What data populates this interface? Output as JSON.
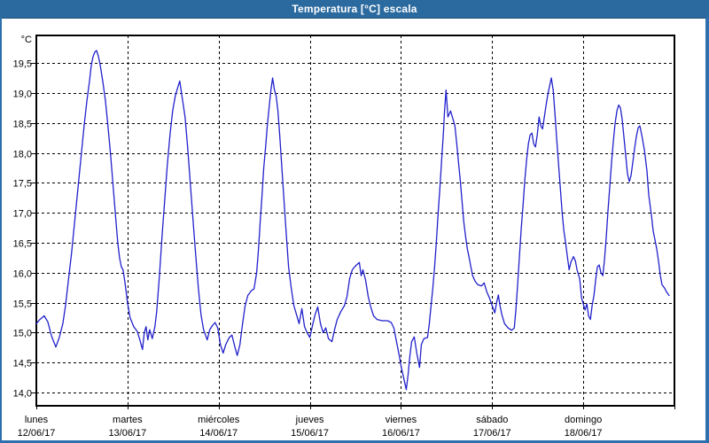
{
  "window": {
    "title": "Temperatura [°C] escala"
  },
  "colors": {
    "titlebar": "#2B6A9F",
    "window_border": "#2E6FAD",
    "title_text": "#FFFFFF",
    "plot_border": "#000000",
    "gridline": "#000000",
    "series_line": "#2121CC",
    "background": "#FFFFFF"
  },
  "chart_data": {
    "type": "line",
    "title": "Temperatura [°C] escala",
    "y_unit_label": "°C",
    "xlabel": "",
    "ylabel": "°C",
    "ylim": [
      13.78,
      19.96
    ],
    "grid": "dashed",
    "legend": "none",
    "y_ticks": [
      {
        "value": 19.5,
        "label": "19,5"
      },
      {
        "value": 19.0,
        "label": "19,0"
      },
      {
        "value": 18.5,
        "label": "18,5"
      },
      {
        "value": 18.0,
        "label": "18,0"
      },
      {
        "value": 17.5,
        "label": "17,5"
      },
      {
        "value": 17.0,
        "label": "17,0"
      },
      {
        "value": 16.5,
        "label": "16,5"
      },
      {
        "value": 16.0,
        "label": "16,0"
      },
      {
        "value": 15.5,
        "label": "15,5"
      },
      {
        "value": 15.0,
        "label": "15,0"
      },
      {
        "value": 14.5,
        "label": "14,5"
      },
      {
        "value": 14.0,
        "label": "14,0"
      }
    ],
    "x_categories": [
      {
        "day": "lunes",
        "date": "12/06/17"
      },
      {
        "day": "martes",
        "date": "13/06/17"
      },
      {
        "day": "miércoles",
        "date": "14/06/17"
      },
      {
        "day": "jueves",
        "date": "15/06/17"
      },
      {
        "day": "viernes",
        "date": "16/06/17"
      },
      {
        "day": "sábado",
        "date": "17/06/17"
      },
      {
        "day": "domingo",
        "date": "18/06/17"
      }
    ],
    "series": [
      {
        "name": "Temperatura",
        "color": "#2121CC",
        "points": [
          [
            0.0,
            15.15
          ],
          [
            0.039,
            15.22
          ],
          [
            0.087,
            15.28
          ],
          [
            0.126,
            15.18
          ],
          [
            0.165,
            14.95
          ],
          [
            0.214,
            14.76
          ],
          [
            0.252,
            14.92
          ],
          [
            0.291,
            15.15
          ],
          [
            0.32,
            15.45
          ],
          [
            0.35,
            15.85
          ],
          [
            0.388,
            16.35
          ],
          [
            0.427,
            16.95
          ],
          [
            0.466,
            17.55
          ],
          [
            0.495,
            18.0
          ],
          [
            0.524,
            18.45
          ],
          [
            0.553,
            18.85
          ],
          [
            0.583,
            19.2
          ],
          [
            0.602,
            19.45
          ],
          [
            0.621,
            19.6
          ],
          [
            0.641,
            19.68
          ],
          [
            0.66,
            19.71
          ],
          [
            0.68,
            19.62
          ],
          [
            0.699,
            19.48
          ],
          [
            0.728,
            19.2
          ],
          [
            0.757,
            18.88
          ],
          [
            0.786,
            18.45
          ],
          [
            0.816,
            17.95
          ],
          [
            0.845,
            17.4
          ],
          [
            0.874,
            16.85
          ],
          [
            0.893,
            16.5
          ],
          [
            0.913,
            16.25
          ],
          [
            0.932,
            16.1
          ],
          [
            0.951,
            16.05
          ],
          [
            0.971,
            15.85
          ],
          [
            1.0,
            15.5
          ],
          [
            1.029,
            15.25
          ],
          [
            1.068,
            15.1
          ],
          [
            1.107,
            15.02
          ],
          [
            1.136,
            14.88
          ],
          [
            1.165,
            14.72
          ],
          [
            1.184,
            15.0
          ],
          [
            1.204,
            15.1
          ],
          [
            1.223,
            14.88
          ],
          [
            1.243,
            15.05
          ],
          [
            1.272,
            14.9
          ],
          [
            1.301,
            15.1
          ],
          [
            1.32,
            15.35
          ],
          [
            1.35,
            15.95
          ],
          [
            1.379,
            16.6
          ],
          [
            1.408,
            17.2
          ],
          [
            1.437,
            17.8
          ],
          [
            1.466,
            18.3
          ],
          [
            1.495,
            18.7
          ],
          [
            1.524,
            18.95
          ],
          [
            1.553,
            19.1
          ],
          [
            1.573,
            19.2
          ],
          [
            1.602,
            18.9
          ],
          [
            1.631,
            18.6
          ],
          [
            1.66,
            18.1
          ],
          [
            1.689,
            17.5
          ],
          [
            1.718,
            16.9
          ],
          [
            1.748,
            16.3
          ],
          [
            1.777,
            15.75
          ],
          [
            1.806,
            15.3
          ],
          [
            1.835,
            15.05
          ],
          [
            1.874,
            14.88
          ],
          [
            1.903,
            15.05
          ],
          [
            1.932,
            15.12
          ],
          [
            1.961,
            15.17
          ],
          [
            1.99,
            15.08
          ],
          [
            2.019,
            14.8
          ],
          [
            2.049,
            14.66
          ],
          [
            2.078,
            14.8
          ],
          [
            2.117,
            14.92
          ],
          [
            2.146,
            14.96
          ],
          [
            2.175,
            14.78
          ],
          [
            2.204,
            14.62
          ],
          [
            2.233,
            14.8
          ],
          [
            2.262,
            15.15
          ],
          [
            2.291,
            15.45
          ],
          [
            2.32,
            15.62
          ],
          [
            2.359,
            15.7
          ],
          [
            2.388,
            15.73
          ],
          [
            2.417,
            16.0
          ],
          [
            2.437,
            16.4
          ],
          [
            2.456,
            16.85
          ],
          [
            2.476,
            17.3
          ],
          [
            2.495,
            17.75
          ],
          [
            2.515,
            18.1
          ],
          [
            2.534,
            18.45
          ],
          [
            2.553,
            18.75
          ],
          [
            2.573,
            19.05
          ],
          [
            2.592,
            19.25
          ],
          [
            2.612,
            19.05
          ],
          [
            2.631,
            18.95
          ],
          [
            2.65,
            18.7
          ],
          [
            2.67,
            18.3
          ],
          [
            2.689,
            17.85
          ],
          [
            2.709,
            17.4
          ],
          [
            2.728,
            16.95
          ],
          [
            2.748,
            16.5
          ],
          [
            2.767,
            16.1
          ],
          [
            2.796,
            15.75
          ],
          [
            2.825,
            15.45
          ],
          [
            2.854,
            15.3
          ],
          [
            2.883,
            15.15
          ],
          [
            2.913,
            15.4
          ],
          [
            2.942,
            15.1
          ],
          [
            2.971,
            15.0
          ],
          [
            3.0,
            14.92
          ],
          [
            3.029,
            15.12
          ],
          [
            3.058,
            15.3
          ],
          [
            3.087,
            15.43
          ],
          [
            3.117,
            15.15
          ],
          [
            3.146,
            15.0
          ],
          [
            3.175,
            15.08
          ],
          [
            3.204,
            14.9
          ],
          [
            3.243,
            14.85
          ],
          [
            3.272,
            15.05
          ],
          [
            3.301,
            15.22
          ],
          [
            3.34,
            15.35
          ],
          [
            3.379,
            15.45
          ],
          [
            3.408,
            15.6
          ],
          [
            3.437,
            15.9
          ],
          [
            3.466,
            16.05
          ],
          [
            3.505,
            16.12
          ],
          [
            3.544,
            16.17
          ],
          [
            3.563,
            15.95
          ],
          [
            3.583,
            16.05
          ],
          [
            3.612,
            15.88
          ],
          [
            3.641,
            15.6
          ],
          [
            3.67,
            15.42
          ],
          [
            3.699,
            15.28
          ],
          [
            3.738,
            15.22
          ],
          [
            3.796,
            15.2
          ],
          [
            3.854,
            15.2
          ],
          [
            3.893,
            15.17
          ],
          [
            3.922,
            15.08
          ],
          [
            3.951,
            14.85
          ],
          [
            3.981,
            14.62
          ],
          [
            4.0,
            14.45
          ],
          [
            4.029,
            14.25
          ],
          [
            4.058,
            14.05
          ],
          [
            4.078,
            14.3
          ],
          [
            4.097,
            14.6
          ],
          [
            4.117,
            14.85
          ],
          [
            4.146,
            14.93
          ],
          [
            4.175,
            14.65
          ],
          [
            4.204,
            14.42
          ],
          [
            4.223,
            14.8
          ],
          [
            4.252,
            14.9
          ],
          [
            4.291,
            14.92
          ],
          [
            4.311,
            15.15
          ],
          [
            4.33,
            15.45
          ],
          [
            4.35,
            15.75
          ],
          [
            4.369,
            16.1
          ],
          [
            4.388,
            16.5
          ],
          [
            4.408,
            17.0
          ],
          [
            4.427,
            17.4
          ],
          [
            4.447,
            17.9
          ],
          [
            4.466,
            18.35
          ],
          [
            4.476,
            18.65
          ],
          [
            4.495,
            19.05
          ],
          [
            4.515,
            18.6
          ],
          [
            4.544,
            18.7
          ],
          [
            4.573,
            18.55
          ],
          [
            4.592,
            18.45
          ],
          [
            4.612,
            18.15
          ],
          [
            4.631,
            17.85
          ],
          [
            4.65,
            17.55
          ],
          [
            4.67,
            17.2
          ],
          [
            4.689,
            16.85
          ],
          [
            4.709,
            16.6
          ],
          [
            4.728,
            16.4
          ],
          [
            4.748,
            16.25
          ],
          [
            4.767,
            16.1
          ],
          [
            4.786,
            15.95
          ],
          [
            4.816,
            15.85
          ],
          [
            4.845,
            15.8
          ],
          [
            4.883,
            15.78
          ],
          [
            4.913,
            15.83
          ],
          [
            4.942,
            15.68
          ],
          [
            4.971,
            15.58
          ],
          [
            5.0,
            15.45
          ],
          [
            5.029,
            15.33
          ],
          [
            5.049,
            15.5
          ],
          [
            5.068,
            15.63
          ],
          [
            5.087,
            15.45
          ],
          [
            5.107,
            15.3
          ],
          [
            5.136,
            15.15
          ],
          [
            5.175,
            15.08
          ],
          [
            5.214,
            15.04
          ],
          [
            5.243,
            15.08
          ],
          [
            5.262,
            15.4
          ],
          [
            5.282,
            15.85
          ],
          [
            5.301,
            16.3
          ],
          [
            5.32,
            16.75
          ],
          [
            5.34,
            17.15
          ],
          [
            5.359,
            17.55
          ],
          [
            5.379,
            17.9
          ],
          [
            5.398,
            18.15
          ],
          [
            5.417,
            18.3
          ],
          [
            5.437,
            18.33
          ],
          [
            5.456,
            18.15
          ],
          [
            5.476,
            18.1
          ],
          [
            5.495,
            18.3
          ],
          [
            5.515,
            18.6
          ],
          [
            5.534,
            18.45
          ],
          [
            5.553,
            18.4
          ],
          [
            5.573,
            18.6
          ],
          [
            5.592,
            18.8
          ],
          [
            5.612,
            18.98
          ],
          [
            5.631,
            19.12
          ],
          [
            5.65,
            19.25
          ],
          [
            5.67,
            19.05
          ],
          [
            5.689,
            18.65
          ],
          [
            5.709,
            18.22
          ],
          [
            5.728,
            17.82
          ],
          [
            5.748,
            17.42
          ],
          [
            5.767,
            17.02
          ],
          [
            5.786,
            16.72
          ],
          [
            5.806,
            16.5
          ],
          [
            5.825,
            16.28
          ],
          [
            5.845,
            16.05
          ],
          [
            5.864,
            16.18
          ],
          [
            5.893,
            16.27
          ],
          [
            5.913,
            16.2
          ],
          [
            5.932,
            16.05
          ],
          [
            5.961,
            15.9
          ],
          [
            5.981,
            15.58
          ],
          [
            6.019,
            15.38
          ],
          [
            6.039,
            15.48
          ],
          [
            6.058,
            15.28
          ],
          [
            6.078,
            15.22
          ],
          [
            6.097,
            15.45
          ],
          [
            6.117,
            15.62
          ],
          [
            6.136,
            15.88
          ],
          [
            6.155,
            16.1
          ],
          [
            6.175,
            16.13
          ],
          [
            6.194,
            16.0
          ],
          [
            6.214,
            15.95
          ],
          [
            6.233,
            16.22
          ],
          [
            6.252,
            16.6
          ],
          [
            6.272,
            17.05
          ],
          [
            6.291,
            17.45
          ],
          [
            6.311,
            17.85
          ],
          [
            6.33,
            18.2
          ],
          [
            6.35,
            18.5
          ],
          [
            6.369,
            18.7
          ],
          [
            6.388,
            18.8
          ],
          [
            6.408,
            18.75
          ],
          [
            6.427,
            18.55
          ],
          [
            6.447,
            18.25
          ],
          [
            6.466,
            17.95
          ],
          [
            6.485,
            17.65
          ],
          [
            6.505,
            17.52
          ],
          [
            6.524,
            17.62
          ],
          [
            6.544,
            17.85
          ],
          [
            6.563,
            18.08
          ],
          [
            6.583,
            18.28
          ],
          [
            6.602,
            18.42
          ],
          [
            6.621,
            18.45
          ],
          [
            6.641,
            18.3
          ],
          [
            6.67,
            18.05
          ],
          [
            6.699,
            17.7
          ],
          [
            6.718,
            17.3
          ],
          [
            6.748,
            16.95
          ],
          [
            6.767,
            16.7
          ],
          [
            6.786,
            16.55
          ],
          [
            6.806,
            16.4
          ],
          [
            6.825,
            16.2
          ],
          [
            6.845,
            15.95
          ],
          [
            6.864,
            15.8
          ],
          [
            6.893,
            15.74
          ],
          [
            6.913,
            15.68
          ],
          [
            6.942,
            15.62
          ]
        ]
      }
    ]
  }
}
